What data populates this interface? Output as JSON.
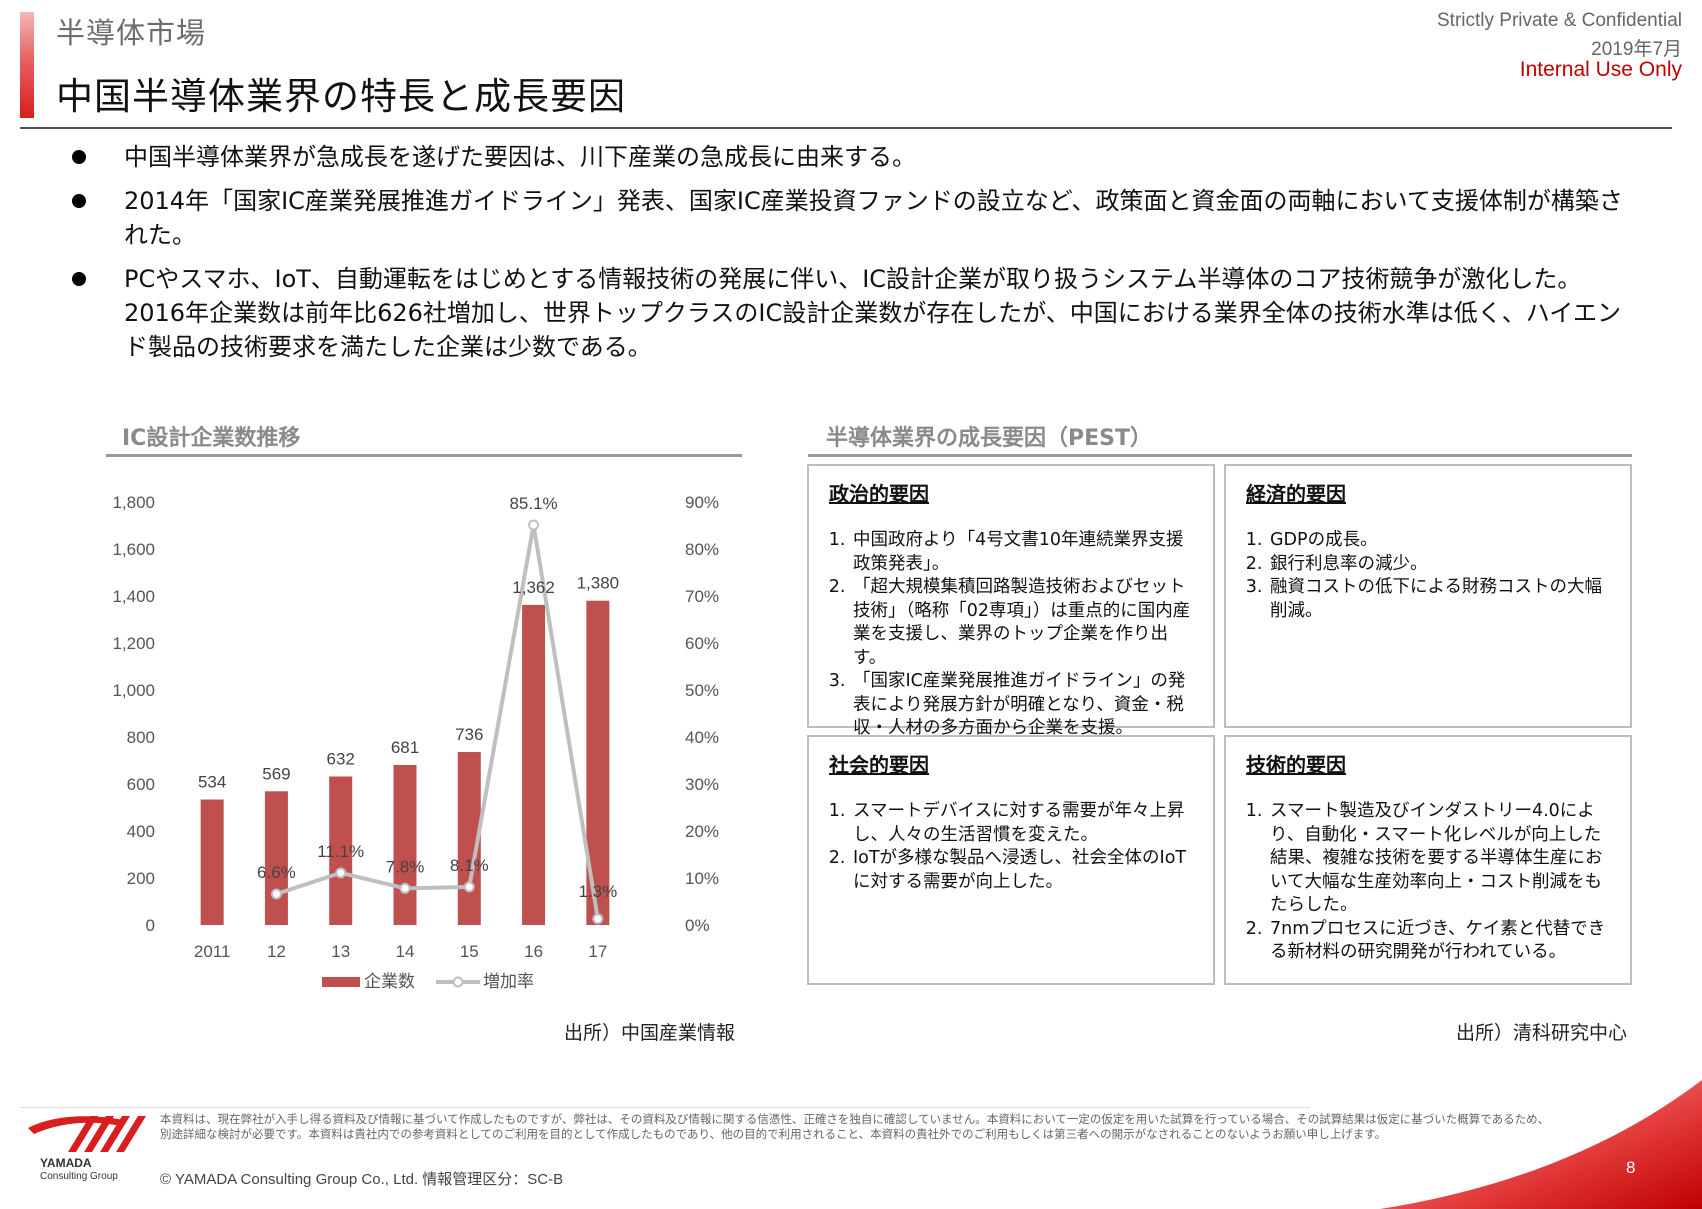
{
  "header": {
    "section": "半導体市場",
    "title": "中国半導体業界の特長と成長要因",
    "confidential": "Strictly Private & Confidential",
    "date": "2019年7月",
    "internal": "Internal Use Only"
  },
  "bullets": [
    "中国半導体業界が急成長を遂げた要因は、川下産業の急成長に由来する。",
    "2014年「国家IC産業発展推進ガイドライン」発表、国家IC産業投資ファンドの設立など、政策面と資金面の両軸において支援体制が構築された。",
    "PCやスマホ、IoT、自動運転をはじめとする情報技術の発展に伴い、IC設計企業が取り扱うシステム半導体のコア技術競争が激化した。2016年企業数は前年比626社増加し、世界トップクラスのIC設計企業数が存在したが、中国における業界全体の技術水準は低く、ハイエンド製品の技術要求を満たした企業は少数である。"
  ],
  "chart_data": {
    "type": "bar",
    "title": "IC設計企業数推移",
    "categories": [
      "2011",
      "12",
      "13",
      "14",
      "15",
      "16",
      "17"
    ],
    "series": [
      {
        "name": "企業数",
        "type": "bar",
        "axis": "left",
        "color": "#c0504d",
        "values": [
          534,
          569,
          632,
          681,
          736,
          1362,
          1380
        ],
        "labels": [
          "534",
          "569",
          "632",
          "681",
          "736",
          "1,362",
          "1,380"
        ]
      },
      {
        "name": "増加率",
        "type": "line",
        "axis": "right",
        "color": "#bfbfbf",
        "values": [
          null,
          6.6,
          11.1,
          7.8,
          8.1,
          85.1,
          1.3
        ],
        "labels": [
          "",
          "6.6%",
          "11.1%",
          "7.8%",
          "8.1%",
          "85.1%",
          "1.3%"
        ]
      }
    ],
    "ylim_left": [
      0,
      1800
    ],
    "ylim_right": [
      0,
      90
    ],
    "yticks_left": [
      "0",
      "200",
      "400",
      "600",
      "800",
      "1,000",
      "1,200",
      "1,400",
      "1,600",
      "1,800"
    ],
    "yticks_right": [
      "0%",
      "10%",
      "20%",
      "30%",
      "40%",
      "50%",
      "60%",
      "70%",
      "80%",
      "90%"
    ],
    "grid": false,
    "legend_position": "bottom",
    "source": "出所）中国産業情報"
  },
  "pest": {
    "title": "半導体業界の成長要因（PEST）",
    "political": {
      "heading": "政治的要因",
      "items": [
        "中国政府より「4号文書10年連続業界支援政策発表」。",
        "「超大規模集積回路製造技術およびセット技術」（略称「02専項」）は重点的に国内産業を支援し、業界のトップ企業を作り出す。",
        "「国家IC産業発展推進ガイドライン」の発表により発展方針が明確となり、資金・税収・人材の多方面から企業を支援。"
      ]
    },
    "economic": {
      "heading": "経済的要因",
      "items": [
        "GDPの成長。",
        "銀行利息率の減少。",
        "融資コストの低下による財務コストの大幅削減。"
      ]
    },
    "social": {
      "heading": "社会的要因",
      "items": [
        "スマートデバイスに対する需要が年々上昇し、人々の生活習慣を変えた。",
        "IoTが多様な製品へ浸透し、社会全体のIoTに対する需要が向上した。"
      ]
    },
    "technological": {
      "heading": "技術的要因",
      "items": [
        "スマート製造及びインダストリー4.0により、自動化・スマート化レベルが向上した結果、複雑な技術を要する半導体生産において大幅な生産効率向上・コスト削減をもたらした。",
        "7nmプロセスに近づき、ケイ素と代替できる新材料の研究開発が行われている。"
      ]
    },
    "source": "出所）清科研究中心"
  },
  "footer": {
    "disclaimer": "本資料は、現在弊社が入手し得る資料及び情報に基づいて作成したものですが、弊社は、その資料及び情報に関する信憑性、正確さを独自に確認していません。本資料において一定の仮定を用いた試算を行っている場合、その試算結果は仮定に基づいた概算であるため、別途詳細な検討が必要です。本資料は貴社内での参考資料としてのご利用を目的として作成したものであり、他の目的で利用されること、本資料の貴社外でのご利用もしくは第三者への開示がなされることのないようお願い申し上げます。",
    "copyright": "© YAMADA Consulting  Group  Co., Ltd.     情報管理区分：SC-B",
    "logo_name": "YAMADA",
    "logo_sub": "Consulting Group",
    "page": "8"
  },
  "colors": {
    "accent": "#d81e1e",
    "bar": "#c0504d",
    "line": "#bfbfbf"
  }
}
